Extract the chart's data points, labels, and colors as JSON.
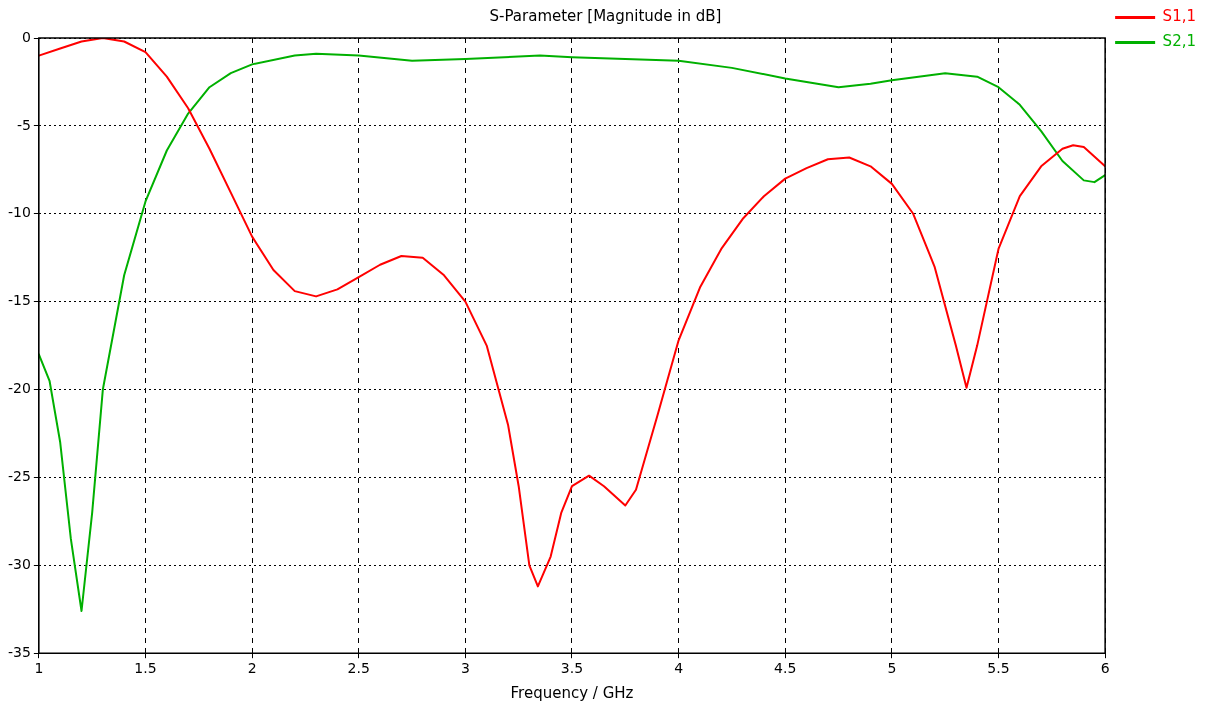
{
  "chart_data": {
    "type": "line",
    "title": "S-Parameter [Magnitude in dB]",
    "xlabel": "Frequency / GHz",
    "xlim": [
      1,
      6
    ],
    "xticks": [
      1,
      1.5,
      2,
      2.5,
      3,
      3.5,
      4,
      4.5,
      5,
      5.5,
      6
    ],
    "ylim": [
      -35,
      0
    ],
    "yticks": [
      -35,
      -30,
      -25,
      -20,
      -15,
      -10,
      -5,
      0
    ],
    "grid": true,
    "legend": "top right",
    "marker": "none",
    "line_style": "solid",
    "series": [
      {
        "name": "S1,1",
        "color": "#ff0000",
        "x": [
          1,
          1.1,
          1.2,
          1.3,
          1.4,
          1.5,
          1.6,
          1.7,
          1.8,
          1.9,
          2,
          2.1,
          2.2,
          2.3,
          2.4,
          2.5,
          2.6,
          2.7,
          2.8,
          2.9,
          3,
          3.1,
          3.2,
          3.25,
          3.3,
          3.34,
          3.4,
          3.45,
          3.5,
          3.58,
          3.65,
          3.75,
          3.8,
          3.9,
          4,
          4.1,
          4.2,
          4.3,
          4.4,
          4.5,
          4.6,
          4.7,
          4.8,
          4.9,
          5,
          5.1,
          5.2,
          5.3,
          5.35,
          5.4,
          5.5,
          5.6,
          5.7,
          5.8,
          5.85,
          5.9,
          6
        ],
        "values": [
          -1,
          -0.6,
          -0.2,
          0,
          -0.2,
          -0.8,
          -2.2,
          -4,
          -6.3,
          -8.8,
          -11.3,
          -13.2,
          -14.4,
          -14.7,
          -14.3,
          -13.6,
          -12.9,
          -12.4,
          -12.5,
          -13.5,
          -15,
          -17.5,
          -22,
          -25.5,
          -30,
          -31.2,
          -29.5,
          -27,
          -25.5,
          -24.9,
          -25.5,
          -26.6,
          -25.7,
          -21.5,
          -17.2,
          -14.2,
          -12,
          -10.3,
          -9,
          -8,
          -7.4,
          -6.9,
          -6.8,
          -7.3,
          -8.3,
          -10,
          -13,
          -17.5,
          -19.9,
          -17.5,
          -12,
          -9,
          -7.3,
          -6.3,
          -6.1,
          -6.2,
          -7.3
        ]
      },
      {
        "name": "S2,1",
        "color": "#00b000",
        "x": [
          1,
          1.05,
          1.1,
          1.15,
          1.2,
          1.25,
          1.3,
          1.4,
          1.5,
          1.6,
          1.7,
          1.8,
          1.9,
          2,
          2.2,
          2.3,
          2.5,
          2.75,
          3,
          3.35,
          3.5,
          4,
          4.25,
          4.5,
          4.75,
          4.9,
          5,
          5.25,
          5.4,
          5.5,
          5.6,
          5.7,
          5.8,
          5.9,
          5.95,
          6
        ],
        "values": [
          -18,
          -19.5,
          -23,
          -28.5,
          -32.6,
          -27,
          -20,
          -13.5,
          -9.3,
          -6.4,
          -4.3,
          -2.8,
          -2,
          -1.5,
          -1,
          -0.9,
          -1,
          -1.3,
          -1.2,
          -1,
          -1.1,
          -1.3,
          -1.7,
          -2.3,
          -2.8,
          -2.6,
          -2.4,
          -2,
          -2.2,
          -2.8,
          -3.8,
          -5.3,
          -7,
          -8.1,
          -8.2,
          -7.8
        ]
      }
    ]
  }
}
